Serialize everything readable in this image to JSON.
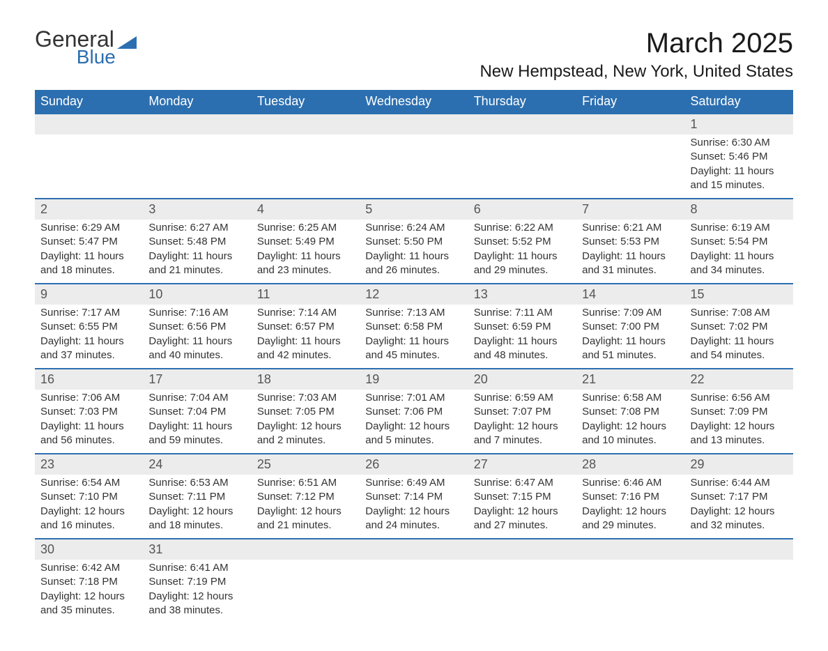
{
  "logo": {
    "word1": "General",
    "word2": "Blue"
  },
  "title": "March 2025",
  "subtitle": "New Hempstead, New York, United States",
  "colors": {
    "header_bg": "#2c6fb0",
    "header_text": "#ffffff",
    "daynum_bg": "#ececec",
    "border": "#2c6fb0",
    "body_text": "#333333"
  },
  "day_names": [
    "Sunday",
    "Monday",
    "Tuesday",
    "Wednesday",
    "Thursday",
    "Friday",
    "Saturday"
  ],
  "weeks": [
    [
      null,
      null,
      null,
      null,
      null,
      null,
      {
        "n": "1",
        "sr": "6:30 AM",
        "ss": "5:46 PM",
        "dl": "11 hours and 15 minutes."
      }
    ],
    [
      {
        "n": "2",
        "sr": "6:29 AM",
        "ss": "5:47 PM",
        "dl": "11 hours and 18 minutes."
      },
      {
        "n": "3",
        "sr": "6:27 AM",
        "ss": "5:48 PM",
        "dl": "11 hours and 21 minutes."
      },
      {
        "n": "4",
        "sr": "6:25 AM",
        "ss": "5:49 PM",
        "dl": "11 hours and 23 minutes."
      },
      {
        "n": "5",
        "sr": "6:24 AM",
        "ss": "5:50 PM",
        "dl": "11 hours and 26 minutes."
      },
      {
        "n": "6",
        "sr": "6:22 AM",
        "ss": "5:52 PM",
        "dl": "11 hours and 29 minutes."
      },
      {
        "n": "7",
        "sr": "6:21 AM",
        "ss": "5:53 PM",
        "dl": "11 hours and 31 minutes."
      },
      {
        "n": "8",
        "sr": "6:19 AM",
        "ss": "5:54 PM",
        "dl": "11 hours and 34 minutes."
      }
    ],
    [
      {
        "n": "9",
        "sr": "7:17 AM",
        "ss": "6:55 PM",
        "dl": "11 hours and 37 minutes."
      },
      {
        "n": "10",
        "sr": "7:16 AM",
        "ss": "6:56 PM",
        "dl": "11 hours and 40 minutes."
      },
      {
        "n": "11",
        "sr": "7:14 AM",
        "ss": "6:57 PM",
        "dl": "11 hours and 42 minutes."
      },
      {
        "n": "12",
        "sr": "7:13 AM",
        "ss": "6:58 PM",
        "dl": "11 hours and 45 minutes."
      },
      {
        "n": "13",
        "sr": "7:11 AM",
        "ss": "6:59 PM",
        "dl": "11 hours and 48 minutes."
      },
      {
        "n": "14",
        "sr": "7:09 AM",
        "ss": "7:00 PM",
        "dl": "11 hours and 51 minutes."
      },
      {
        "n": "15",
        "sr": "7:08 AM",
        "ss": "7:02 PM",
        "dl": "11 hours and 54 minutes."
      }
    ],
    [
      {
        "n": "16",
        "sr": "7:06 AM",
        "ss": "7:03 PM",
        "dl": "11 hours and 56 minutes."
      },
      {
        "n": "17",
        "sr": "7:04 AM",
        "ss": "7:04 PM",
        "dl": "11 hours and 59 minutes."
      },
      {
        "n": "18",
        "sr": "7:03 AM",
        "ss": "7:05 PM",
        "dl": "12 hours and 2 minutes."
      },
      {
        "n": "19",
        "sr": "7:01 AM",
        "ss": "7:06 PM",
        "dl": "12 hours and 5 minutes."
      },
      {
        "n": "20",
        "sr": "6:59 AM",
        "ss": "7:07 PM",
        "dl": "12 hours and 7 minutes."
      },
      {
        "n": "21",
        "sr": "6:58 AM",
        "ss": "7:08 PM",
        "dl": "12 hours and 10 minutes."
      },
      {
        "n": "22",
        "sr": "6:56 AM",
        "ss": "7:09 PM",
        "dl": "12 hours and 13 minutes."
      }
    ],
    [
      {
        "n": "23",
        "sr": "6:54 AM",
        "ss": "7:10 PM",
        "dl": "12 hours and 16 minutes."
      },
      {
        "n": "24",
        "sr": "6:53 AM",
        "ss": "7:11 PM",
        "dl": "12 hours and 18 minutes."
      },
      {
        "n": "25",
        "sr": "6:51 AM",
        "ss": "7:12 PM",
        "dl": "12 hours and 21 minutes."
      },
      {
        "n": "26",
        "sr": "6:49 AM",
        "ss": "7:14 PM",
        "dl": "12 hours and 24 minutes."
      },
      {
        "n": "27",
        "sr": "6:47 AM",
        "ss": "7:15 PM",
        "dl": "12 hours and 27 minutes."
      },
      {
        "n": "28",
        "sr": "6:46 AM",
        "ss": "7:16 PM",
        "dl": "12 hours and 29 minutes."
      },
      {
        "n": "29",
        "sr": "6:44 AM",
        "ss": "7:17 PM",
        "dl": "12 hours and 32 minutes."
      }
    ],
    [
      {
        "n": "30",
        "sr": "6:42 AM",
        "ss": "7:18 PM",
        "dl": "12 hours and 35 minutes."
      },
      {
        "n": "31",
        "sr": "6:41 AM",
        "ss": "7:19 PM",
        "dl": "12 hours and 38 minutes."
      },
      null,
      null,
      null,
      null,
      null
    ]
  ],
  "labels": {
    "sunrise": "Sunrise:",
    "sunset": "Sunset:",
    "daylight": "Daylight:"
  }
}
